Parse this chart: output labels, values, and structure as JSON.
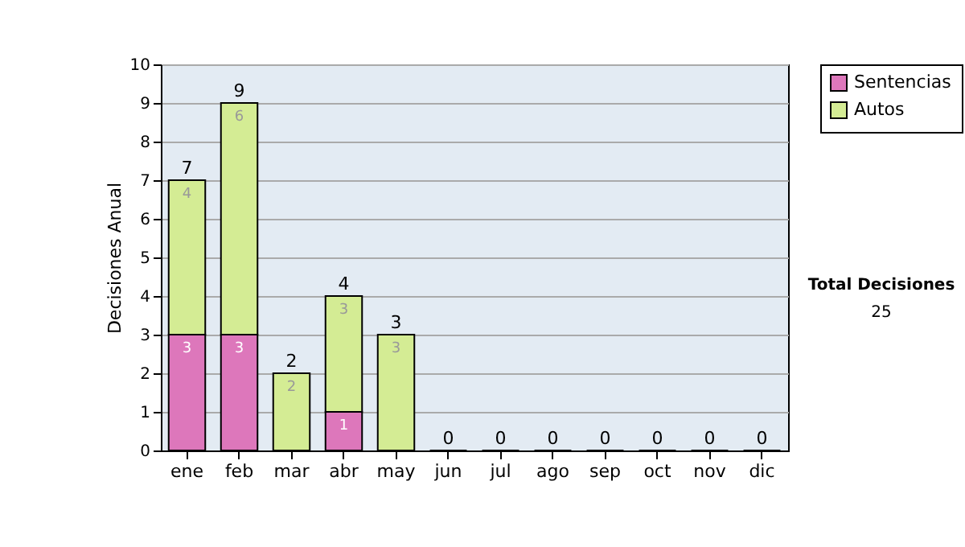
{
  "chart_data": {
    "type": "bar",
    "stacked": true,
    "ylabel": "Decisiones Anual",
    "categories": [
      "ene",
      "feb",
      "mar",
      "abr",
      "may",
      "jun",
      "jul",
      "ago",
      "sep",
      "oct",
      "nov",
      "dic"
    ],
    "series": [
      {
        "name": "Sentencias",
        "color": "#dd77bb",
        "values": [
          3,
          3,
          0,
          1,
          0,
          0,
          0,
          0,
          0,
          0,
          0,
          0
        ],
        "value_labels": [
          "3",
          "3",
          null,
          "1",
          null,
          null,
          null,
          null,
          null,
          null,
          null,
          null
        ]
      },
      {
        "name": "Autos",
        "color": "#d4ec94",
        "values": [
          4,
          6,
          2,
          3,
          3,
          0,
          0,
          0,
          0,
          0,
          0,
          0
        ],
        "value_labels": [
          "4",
          "6",
          "2",
          "3",
          "3",
          null,
          null,
          null,
          null,
          null,
          null,
          null
        ]
      }
    ],
    "totals": [
      "7",
      "9",
      "2",
      "4",
      "3",
      "0",
      "0",
      "0",
      "0",
      "0",
      "0",
      "0"
    ],
    "ylim": [
      0,
      10
    ],
    "yticks": [
      0,
      1,
      2,
      3,
      4,
      5,
      6,
      7,
      8,
      9,
      10
    ],
    "grid": "y",
    "legend": "right",
    "annotations": [
      "Total Decisiones",
      "25"
    ]
  }
}
